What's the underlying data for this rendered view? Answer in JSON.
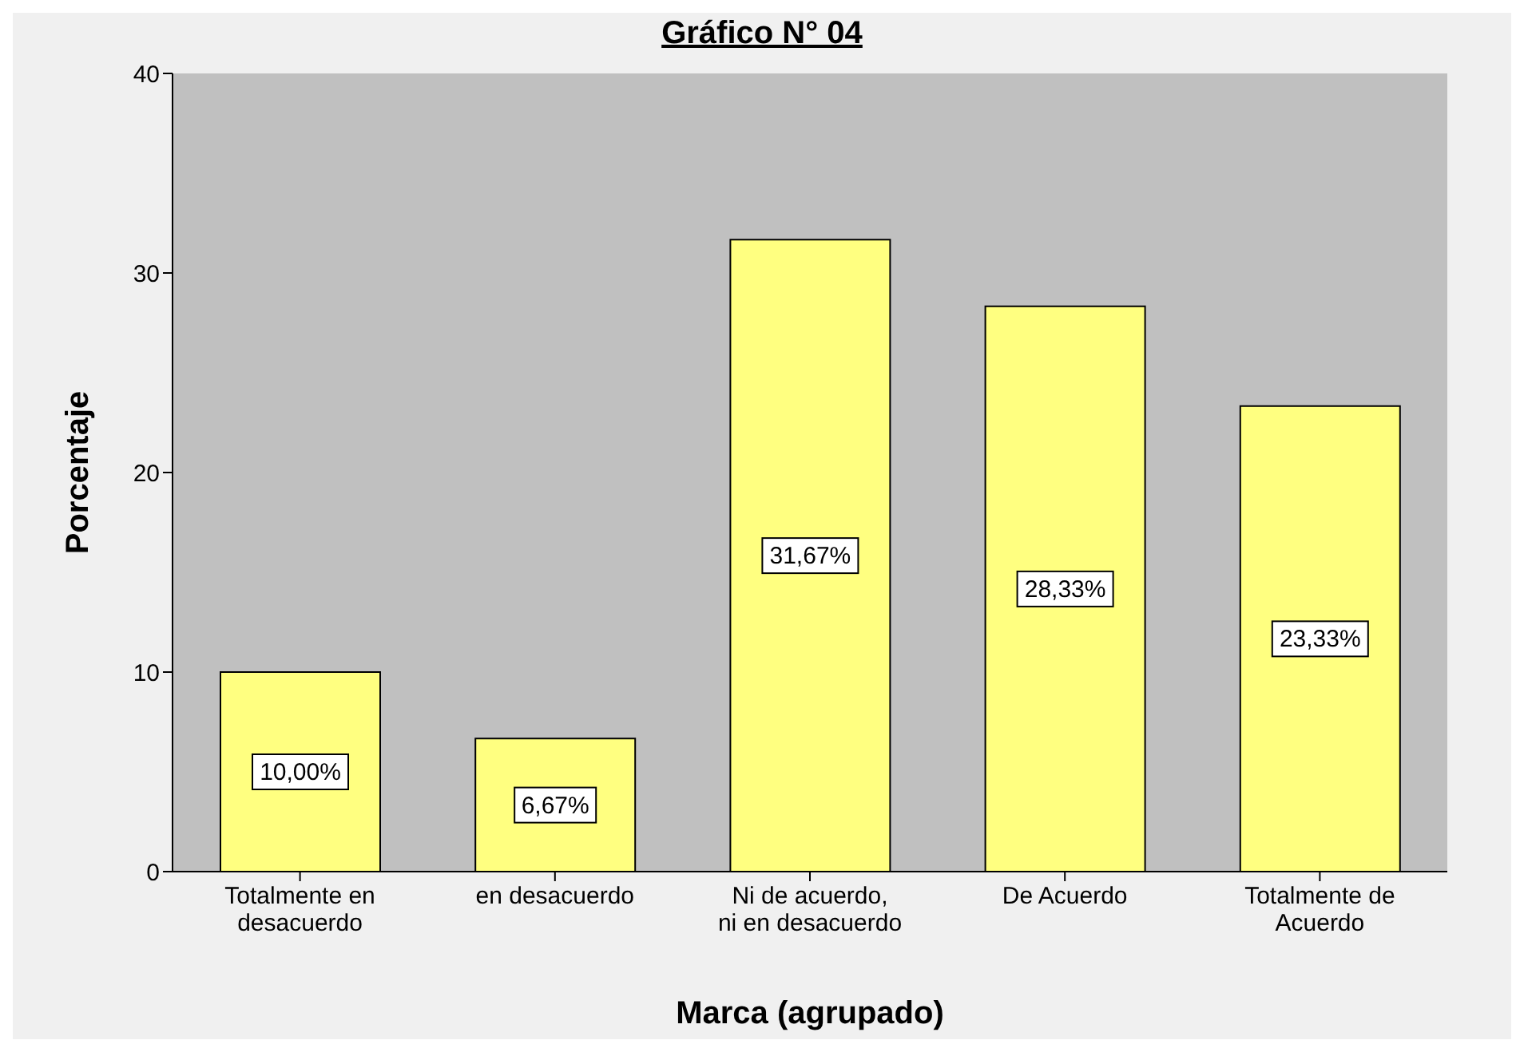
{
  "chart_data": {
    "type": "bar",
    "title": "Gráfico N° 04",
    "xlabel": "Marca (agrupado)",
    "ylabel": "Porcentaje",
    "categories": [
      "Totalmente en desacuerdo",
      "en desacuerdo",
      "Ni de acuerdo, ni en desacuerdo",
      "De Acuerdo",
      "Totalmente de Acuerdo"
    ],
    "values": [
      10,
      6.67,
      31.67,
      28.33,
      23.33
    ],
    "value_labels": [
      "10,00%",
      "6,67%",
      "31,67%",
      "28,33%",
      "23,33%"
    ],
    "color": "#ffff80",
    "ylim": [
      0,
      40
    ],
    "yticks": [
      0,
      10,
      20,
      30,
      40
    ],
    "grid": false
  }
}
